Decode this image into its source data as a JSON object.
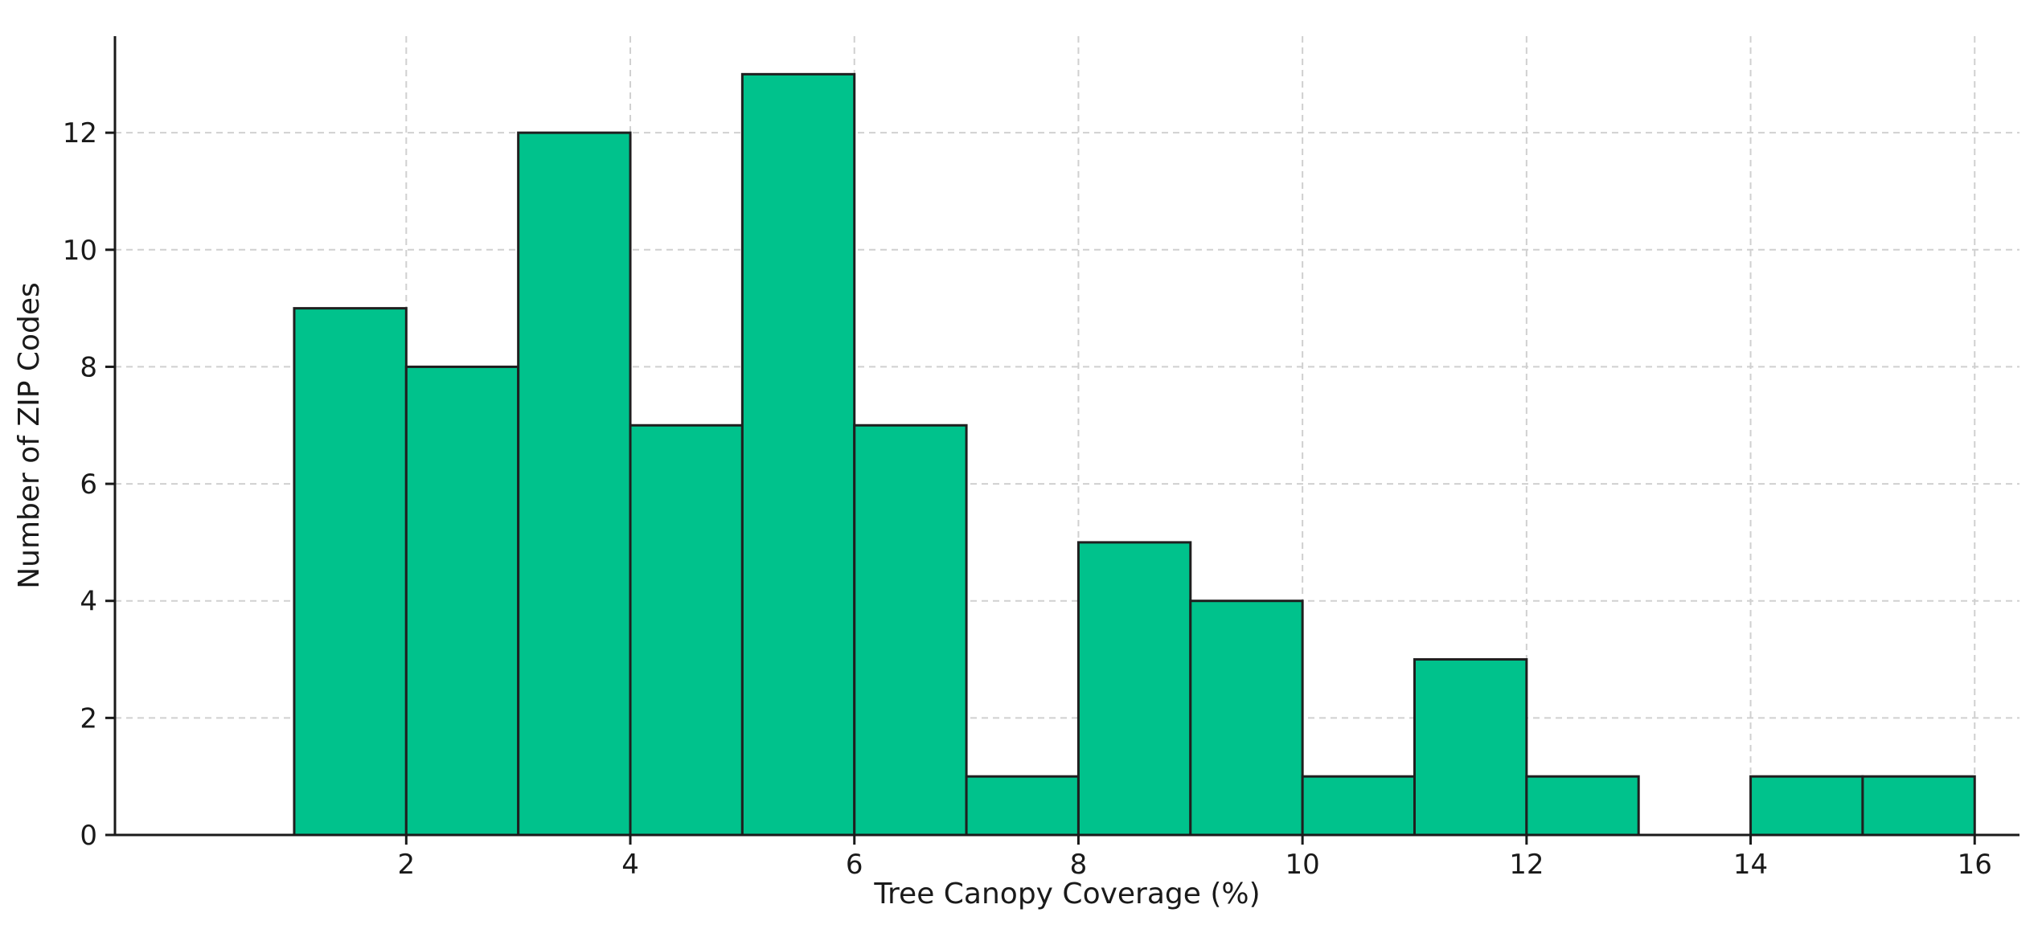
{
  "chart_data": {
    "type": "bar",
    "bins": [
      {
        "x0": 1,
        "x1": 2,
        "count": 9
      },
      {
        "x0": 2,
        "x1": 3,
        "count": 8
      },
      {
        "x0": 3,
        "x1": 4,
        "count": 12
      },
      {
        "x0": 4,
        "x1": 5,
        "count": 7
      },
      {
        "x0": 5,
        "x1": 6,
        "count": 13
      },
      {
        "x0": 6,
        "x1": 7,
        "count": 7
      },
      {
        "x0": 7,
        "x1": 8,
        "count": 1
      },
      {
        "x0": 8,
        "x1": 9,
        "count": 5
      },
      {
        "x0": 9,
        "x1": 10,
        "count": 4
      },
      {
        "x0": 10,
        "x1": 11,
        "count": 1
      },
      {
        "x0": 11,
        "x1": 12,
        "count": 3
      },
      {
        "x0": 12,
        "x1": 13,
        "count": 1
      },
      {
        "x0": 13,
        "x1": 14,
        "count": 0
      },
      {
        "x0": 14,
        "x1": 15,
        "count": 1
      },
      {
        "x0": 15,
        "x1": 16,
        "count": 1
      }
    ],
    "title": "",
    "xlabel": "Tree Canopy Coverage (%)",
    "ylabel": "Number of ZIP Codes",
    "xlim": [
      -0.6,
      16.4
    ],
    "ylim": [
      0,
      13.65
    ],
    "xticks": [
      2,
      4,
      6,
      8,
      10,
      12,
      14,
      16
    ],
    "yticks": [
      0,
      2,
      4,
      6,
      8,
      10,
      12
    ],
    "grid": true,
    "bar_color": "#00c28c",
    "edge_color": "#1f1f1f"
  }
}
